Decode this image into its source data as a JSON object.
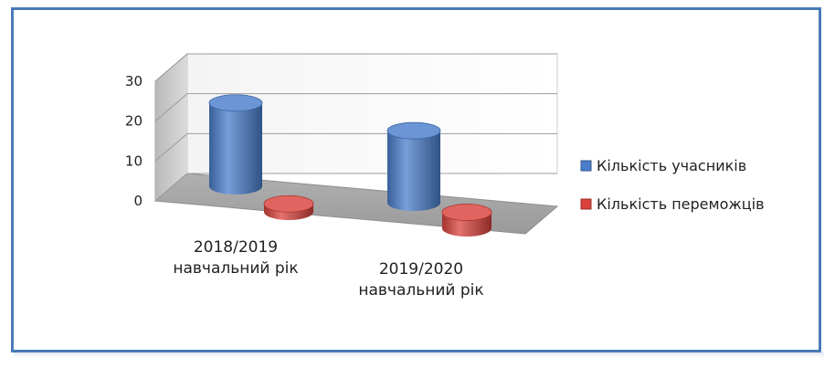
{
  "chart_data": {
    "type": "bar",
    "style": "3d-cylinder",
    "categories": [
      [
        "2018/2019",
        "навчальний рік"
      ],
      [
        "2019/2020",
        "навчальний рік"
      ]
    ],
    "series": [
      {
        "name": "Кількість учасників",
        "values": [
          22,
          19
        ],
        "color": "#4a7ecb"
      },
      {
        "name": "Кількість переможців",
        "values": [
          2,
          4
        ],
        "color": "#d9423c"
      }
    ],
    "ylim": [
      0,
      30
    ],
    "yticks": [
      0,
      10,
      20,
      30
    ],
    "grid": true,
    "legend_position": "right"
  }
}
